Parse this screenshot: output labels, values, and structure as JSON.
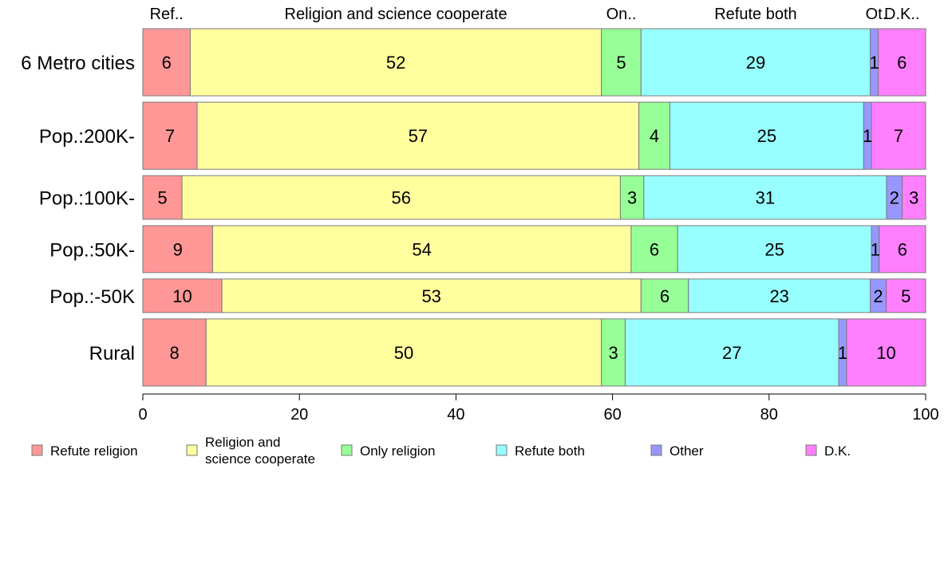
{
  "chart_data": {
    "type": "bar",
    "orientation": "horizontal",
    "stacked": true,
    "normalized_percent": true,
    "categories": [
      "6 Metro cities",
      "Pop.:200K-",
      "Pop.:100K-",
      "Pop.:50K-",
      "Pop.:-50K",
      "Rural"
    ],
    "category_weights": [
      1.0,
      1.0,
      0.65,
      0.7,
      0.5,
      1.0
    ],
    "series": [
      {
        "name": "Refute religion",
        "short": "Ref..",
        "color": "#ff9797",
        "values": [
          6,
          7,
          5,
          9,
          10,
          8
        ]
      },
      {
        "name": "Religion and science cooperate",
        "legend_lines": [
          "Religion and",
          "science cooperate"
        ],
        "short": "Religion and science cooperate",
        "color": "#ffff9e",
        "values": [
          52,
          57,
          56,
          54,
          53,
          50
        ]
      },
      {
        "name": "Only religion",
        "short": "On..",
        "color": "#97ff97",
        "values": [
          5,
          4,
          3,
          6,
          6,
          3
        ]
      },
      {
        "name": "Refute both",
        "short": "Refute both",
        "color": "#97ffff",
        "values": [
          29,
          25,
          31,
          25,
          23,
          27
        ]
      },
      {
        "name": "Other",
        "short": "Ot.",
        "color": "#9797ff",
        "values": [
          1,
          1,
          2,
          1,
          2,
          1
        ]
      },
      {
        "name": "D.K.",
        "short": "D.K..",
        "color": "#ff7fff",
        "values": [
          6,
          7,
          3,
          6,
          5,
          10
        ]
      }
    ],
    "xlim": [
      0,
      100
    ],
    "xticks": [
      0,
      20,
      40,
      60,
      80,
      100
    ],
    "title": "",
    "xlabel": "",
    "ylabel": "",
    "grid": false,
    "legend": "bottom"
  }
}
